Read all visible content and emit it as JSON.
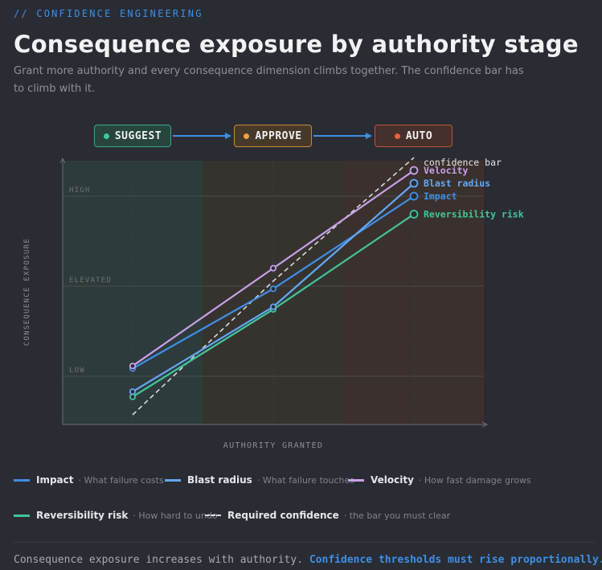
{
  "header": {
    "kicker": "// CONFIDENCE ENGINEERING",
    "title": "Consequence exposure by authority stage",
    "subtitle": "Grant more authority and every consequence dimension climbs together. The confidence bar has to climb with it."
  },
  "stages": [
    {
      "label": "SUGGEST",
      "color": "#3ec79a",
      "bg": "#28453d",
      "border": "#3aa884"
    },
    {
      "label": "APPROVE",
      "color": "#f0a23c",
      "bg": "#46392a",
      "border": "#c98a38"
    },
    {
      "label": "AUTO",
      "color": "#e8633a",
      "bg": "#46302b",
      "border": "#b8563a"
    }
  ],
  "chart_data": {
    "type": "line",
    "xlabel": "AUTHORITY GRANTED",
    "ylabel": "CONSEQUENCE EXPOSURE",
    "categories": [
      "SUGGEST",
      "APPROVE",
      "AUTO"
    ],
    "band_labels": [
      "LOW",
      "ELEVATED",
      "HIGH"
    ],
    "ylim": [
      0,
      100
    ],
    "band_values": [
      15,
      50,
      85
    ],
    "series": [
      {
        "name": "Velocity",
        "color": "#c9a0e8",
        "values": [
          19,
          57,
          95
        ],
        "dashed": false
      },
      {
        "name": "Blast radius",
        "color": "#62a8f5",
        "values": [
          9,
          42,
          90
        ],
        "dashed": false
      },
      {
        "name": "Impact",
        "color": "#3f8fe8",
        "values": [
          18,
          49,
          85
        ],
        "dashed": false
      },
      {
        "name": "Reversibility risk",
        "color": "#3ec79a",
        "values": [
          7,
          41,
          78
        ],
        "dashed": false
      },
      {
        "name": "confidence bar",
        "color": "#d8d8d8",
        "values": [
          0,
          52,
          100
        ],
        "dashed": true
      }
    ]
  },
  "legend": [
    {
      "name": "Impact",
      "desc": "· What failure costs",
      "color": "#3f8fe8",
      "dashed": false
    },
    {
      "name": "Blast radius",
      "desc": "· What failure touches",
      "color": "#62a8f5",
      "dashed": false
    },
    {
      "name": "Velocity",
      "desc": "· How fast damage grows",
      "color": "#c9a0e8",
      "dashed": false
    },
    {
      "name": "Reversibility risk",
      "desc": "· How hard to undo",
      "color": "#3ec79a",
      "dashed": false
    },
    {
      "name": "Required confidence",
      "desc": "· the bar you must clear",
      "color": "#d8d8d8",
      "dashed": true
    }
  ],
  "footer": {
    "text": "Consequence exposure increases with authority.",
    "highlight": "Confidence thresholds must rise proportionally."
  }
}
